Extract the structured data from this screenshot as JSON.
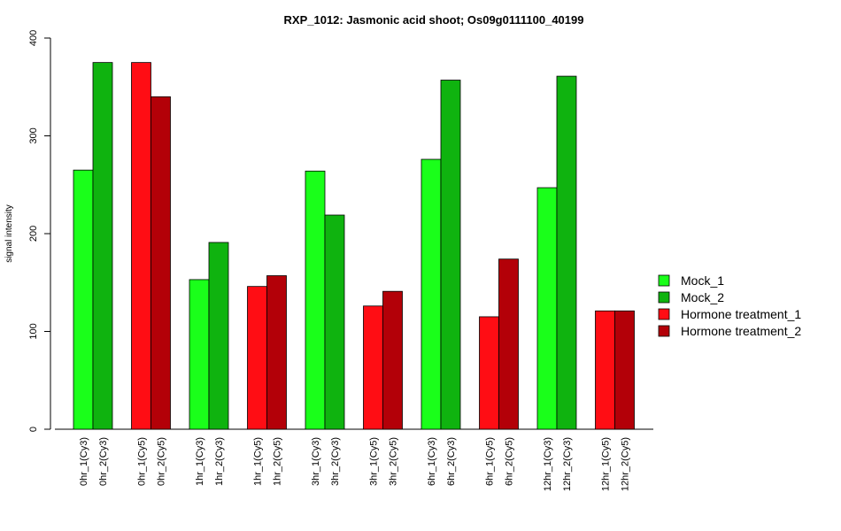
{
  "chart_data": {
    "type": "bar",
    "title": "RXP_1012: Jasmonic acid shoot; Os09g0111100_40199",
    "ylabel": "signal intensity",
    "xlabel": "",
    "ylim": [
      0,
      400
    ],
    "yticks": [
      0,
      100,
      200,
      300,
      400
    ],
    "groups": [
      {
        "bars": [
          {
            "label": "0hr_1(Cy3)",
            "value": 265,
            "series": 0
          },
          {
            "label": "0hr_2(Cy3)",
            "value": 375,
            "series": 1
          }
        ]
      },
      {
        "bars": [
          {
            "label": "0hr_1(Cy5)",
            "value": 375,
            "series": 2
          },
          {
            "label": "0hr_2(Cy5)",
            "value": 340,
            "series": 3
          }
        ]
      },
      {
        "bars": [
          {
            "label": "1hr_1(Cy3)",
            "value": 153,
            "series": 0
          },
          {
            "label": "1hr_2(Cy3)",
            "value": 191,
            "series": 1
          }
        ]
      },
      {
        "bars": [
          {
            "label": "1hr_1(Cy5)",
            "value": 146,
            "series": 2
          },
          {
            "label": "1hr_2(Cy5)",
            "value": 157,
            "series": 3
          }
        ]
      },
      {
        "bars": [
          {
            "label": "3hr_1(Cy3)",
            "value": 264,
            "series": 0
          },
          {
            "label": "3hr_2(Cy3)",
            "value": 219,
            "series": 1
          }
        ]
      },
      {
        "bars": [
          {
            "label": "3hr_1(Cy5)",
            "value": 126,
            "series": 2
          },
          {
            "label": "3hr_2(Cy5)",
            "value": 141,
            "series": 3
          }
        ]
      },
      {
        "bars": [
          {
            "label": "6hr_1(Cy3)",
            "value": 276,
            "series": 0
          },
          {
            "label": "6hr_2(Cy3)",
            "value": 357,
            "series": 1
          }
        ]
      },
      {
        "bars": [
          {
            "label": "6hr_1(Cy5)",
            "value": 115,
            "series": 2
          },
          {
            "label": "6hr_2(Cy5)",
            "value": 174,
            "series": 3
          }
        ]
      },
      {
        "bars": [
          {
            "label": "12hr_1(Cy3)",
            "value": 247,
            "series": 0
          },
          {
            "label": "12hr_2(Cy3)",
            "value": 361,
            "series": 1
          }
        ]
      },
      {
        "bars": [
          {
            "label": "12hr_1(Cy5)",
            "value": 121,
            "series": 2
          },
          {
            "label": "12hr_2(Cy5)",
            "value": 121,
            "series": 3
          }
        ]
      }
    ],
    "series": [
      {
        "name": "Mock_1",
        "color": "#1aff1a"
      },
      {
        "name": "Mock_2",
        "color": "#0fb30f"
      },
      {
        "name": "Hormone treatment_1",
        "color": "#ff0d14"
      },
      {
        "name": "Hormone treatment_2",
        "color": "#b30008"
      }
    ],
    "legend_position": "right",
    "grid": false
  }
}
